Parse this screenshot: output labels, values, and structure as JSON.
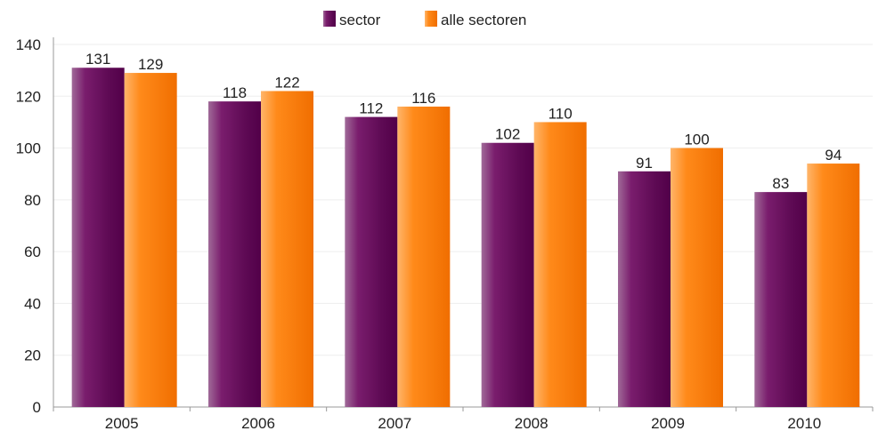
{
  "chart_data": {
    "type": "bar",
    "categories": [
      "2005",
      "2006",
      "2007",
      "2008",
      "2009",
      "2010"
    ],
    "series": [
      {
        "name": "sector",
        "values": [
          131,
          118,
          112,
          102,
          91,
          83
        ],
        "color": "#6a0f5f"
      },
      {
        "name": "alle sectoren",
        "values": [
          129,
          122,
          116,
          110,
          100,
          94
        ],
        "color": "#ff7a00"
      }
    ],
    "ylim": [
      0,
      140
    ],
    "yticks": [
      0,
      20,
      40,
      60,
      80,
      100,
      120,
      140
    ],
    "ytick_labels": [
      "0",
      "20",
      "40",
      "60",
      "80",
      "100",
      "120",
      "140"
    ],
    "data_labels": [
      [
        "131",
        "118",
        "112",
        "102",
        "91",
        "83"
      ],
      [
        "129",
        "122",
        "116",
        "110",
        "100",
        "94"
      ]
    ],
    "legend": {
      "position": "top-center",
      "entries": [
        "sector",
        "alle sectoren"
      ]
    },
    "grid": "horizontal",
    "title": "",
    "xlabel": "",
    "ylabel": ""
  }
}
